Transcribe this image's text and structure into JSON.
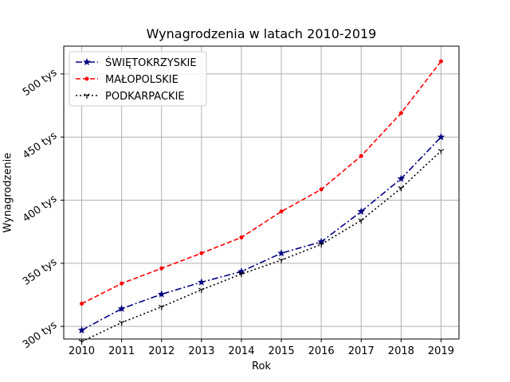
{
  "chart_data": {
    "type": "line",
    "title": "Wynagrodzenia w latach 2010-2019",
    "xlabel": "Rok",
    "ylabel": "Wynagrodzenie",
    "x": [
      2010,
      2011,
      2012,
      2013,
      2014,
      2015,
      2016,
      2017,
      2018,
      2019
    ],
    "x_tick_labels": [
      "2010",
      "2011",
      "2012",
      "2013",
      "2014",
      "2015",
      "2016",
      "2017",
      "2018",
      "2019"
    ],
    "y_ticks": [
      300000,
      350000,
      400000,
      450000,
      500000
    ],
    "y_tick_labels": [
      "300 tys",
      "350 tys",
      "400 tys",
      "450 tys",
      "500 tys"
    ],
    "xlim": [
      2009.55,
      2019.45
    ],
    "ylim": [
      290000,
      522000
    ],
    "grid": true,
    "legend_position": "top-left",
    "series": [
      {
        "name": "ŚWIĘTOKRZYSKIE",
        "color": "#000080",
        "linestyle": "dash-dot",
        "marker": "star",
        "values": [
          297000,
          314000,
          325500,
          335000,
          343500,
          358000,
          367000,
          391000,
          417000,
          450000
        ]
      },
      {
        "name": "MAŁOPOLSKIE",
        "color": "#ff0000",
        "linestyle": "dashed",
        "marker": "point",
        "values": [
          318000,
          334000,
          346000,
          358000,
          370500,
          391000,
          408500,
          435000,
          469000,
          510000
        ]
      },
      {
        "name": "PODKARPACKIE",
        "color": "#000000",
        "linestyle": "dotted",
        "marker": "tri-down",
        "values": [
          288000,
          303000,
          315500,
          329000,
          341500,
          352500,
          365000,
          384000,
          409500,
          439000
        ]
      }
    ]
  }
}
